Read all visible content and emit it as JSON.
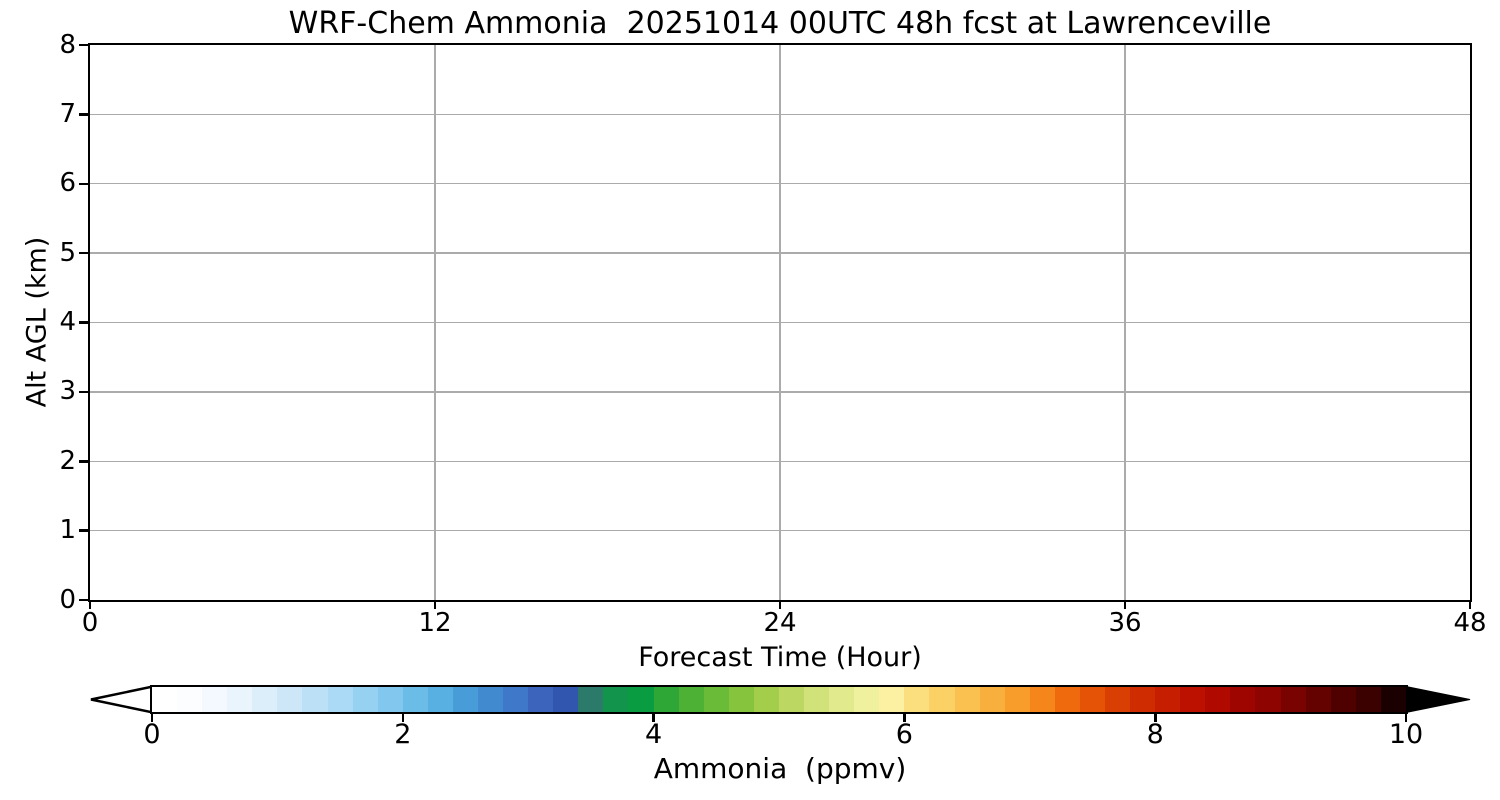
{
  "figure": {
    "title": "WRF-Chem Ammonia  20251014 00UTC 48h fcst at Lawrenceville",
    "background": "#ffffff"
  },
  "chart_data": {
    "type": "heatmap",
    "title": "WRF-Chem Ammonia  20251014 00UTC 48h fcst at Lawrenceville",
    "xlabel": "Forecast Time (Hour)",
    "ylabel": "Alt AGL (km)",
    "xlim": [
      0,
      48
    ],
    "ylim": [
      0,
      8
    ],
    "xticks": [
      0,
      12,
      24,
      36,
      48
    ],
    "yticks": [
      0,
      1,
      2,
      3,
      4,
      5,
      6,
      7,
      8
    ],
    "grid": true,
    "grid_x_hours": [
      12,
      24,
      36
    ],
    "grid_y_km": [
      1,
      2,
      3,
      4,
      5,
      6,
      7
    ],
    "field": {
      "description": "Time-height cross-section of forecast ammonia; entire field at the lowest contour level so the panel renders uniformly white",
      "uniform_value_ppmv": 0
    },
    "colorbar": {
      "label": "Ammonia  (ppmv)",
      "range": [
        0,
        10
      ],
      "ticks": [
        0,
        2,
        4,
        6,
        8,
        10
      ],
      "level_step": 0.2,
      "extend": "both",
      "under_color": "#ffffff",
      "over_color": "#000000",
      "colors": [
        "#ffffff",
        "#fbfdff",
        "#f3f9fe",
        "#e9f4fd",
        "#ddeefb",
        "#cde7f9",
        "#bce1f7",
        "#aadaf5",
        "#97d1f2",
        "#82c8ee",
        "#6cbce8",
        "#58afe1",
        "#489dd8",
        "#428ad0",
        "#3f78c8",
        "#3d64bd",
        "#3156b0",
        "#2b7a6a",
        "#12944c",
        "#0a9c40",
        "#2ea737",
        "#4cb134",
        "#6abb37",
        "#87c43e",
        "#a2ce4c",
        "#bcd862",
        "#d2e27a",
        "#e2ea8e",
        "#f0f19e",
        "#fcf0a2",
        "#fbdf7f",
        "#fbd065",
        "#fac050",
        "#f9af3d",
        "#f89d2b",
        "#f5861c",
        "#ef6a0d",
        "#e45306",
        "#d93f03",
        "#cf2d01",
        "#c61e01",
        "#bc1000",
        "#af0900",
        "#9f0500",
        "#8d0400",
        "#790300",
        "#640200",
        "#4f0100",
        "#3a0100",
        "#1a0000"
      ]
    }
  },
  "colors": {
    "grid": "#ababab",
    "frame": "#000000",
    "text": "#000000"
  }
}
